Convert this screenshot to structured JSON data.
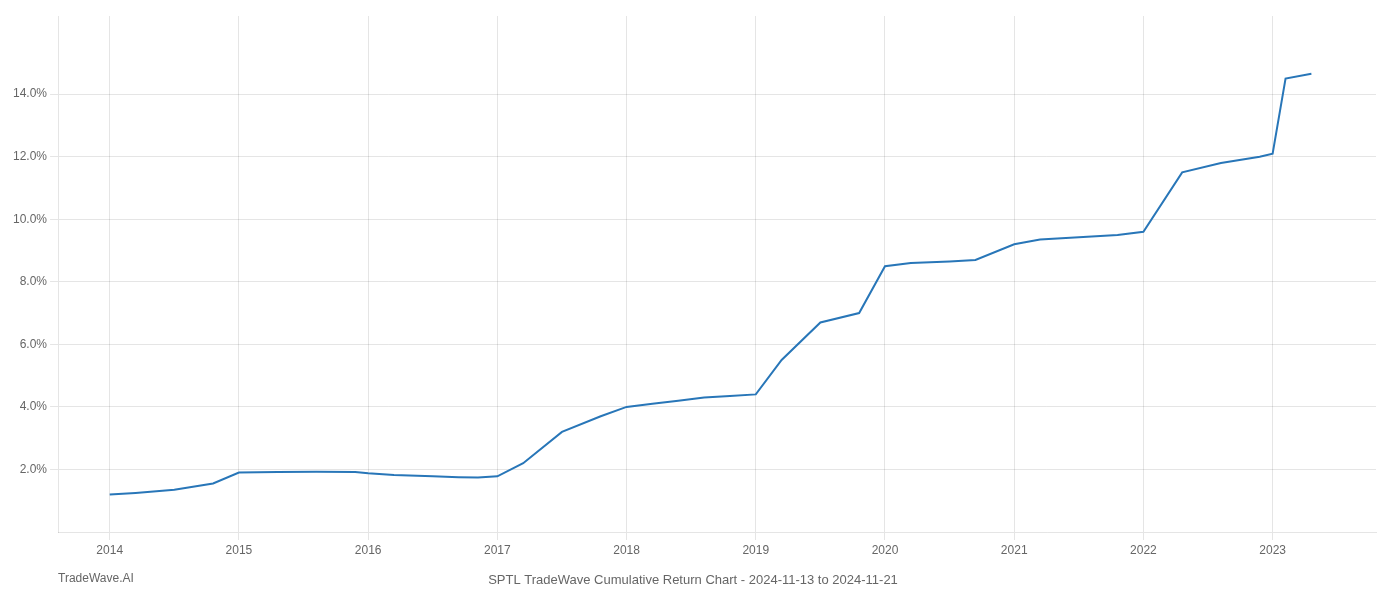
{
  "chart_data": {
    "type": "line",
    "title": "SPTL TradeWave Cumulative Return Chart - 2024-11-13 to 2024-11-21",
    "annotations": [
      "TradeWave.AI"
    ],
    "x": [
      2014.0,
      2014.2,
      2014.5,
      2014.8,
      2015.0,
      2015.3,
      2015.6,
      2015.9,
      2016.0,
      2016.2,
      2016.5,
      2016.7,
      2016.85,
      2017.0,
      2017.2,
      2017.5,
      2017.8,
      2018.0,
      2018.2,
      2018.4,
      2018.6,
      2018.8,
      2019.0,
      2019.2,
      2019.5,
      2019.8,
      2020.0,
      2020.2,
      2020.5,
      2020.7,
      2021.0,
      2021.2,
      2021.4,
      2021.6,
      2021.8,
      2022.0,
      2022.3,
      2022.6,
      2022.9,
      2023.0,
      2023.1,
      2023.3
    ],
    "values": [
      1.2,
      1.25,
      1.35,
      1.55,
      1.9,
      1.92,
      1.93,
      1.92,
      1.88,
      1.82,
      1.78,
      1.75,
      1.74,
      1.78,
      2.2,
      3.2,
      3.7,
      4.0,
      4.1,
      4.2,
      4.3,
      4.35,
      4.4,
      5.5,
      6.7,
      7.0,
      8.5,
      8.6,
      8.65,
      8.7,
      9.2,
      9.35,
      9.4,
      9.45,
      9.5,
      9.6,
      11.5,
      11.8,
      12.0,
      12.1,
      14.5,
      14.65
    ],
    "color": "#2876b8",
    "xlim": [
      2013.6,
      2023.8
    ],
    "ylim": [
      0.0,
      16.5
    ],
    "xticks": [
      2014,
      2015,
      2016,
      2017,
      2018,
      2019,
      2020,
      2021,
      2022,
      2023
    ],
    "yticks": [
      {
        "value": 2.0,
        "label": "2.0%"
      },
      {
        "value": 4.0,
        "label": "4.0%"
      },
      {
        "value": 6.0,
        "label": "6.0%"
      },
      {
        "value": 8.0,
        "label": "8.0%"
      },
      {
        "value": 10.0,
        "label": "10.0%"
      },
      {
        "value": 12.0,
        "label": "12.0%"
      },
      {
        "value": 14.0,
        "label": "14.0%"
      }
    ],
    "grid": true
  }
}
